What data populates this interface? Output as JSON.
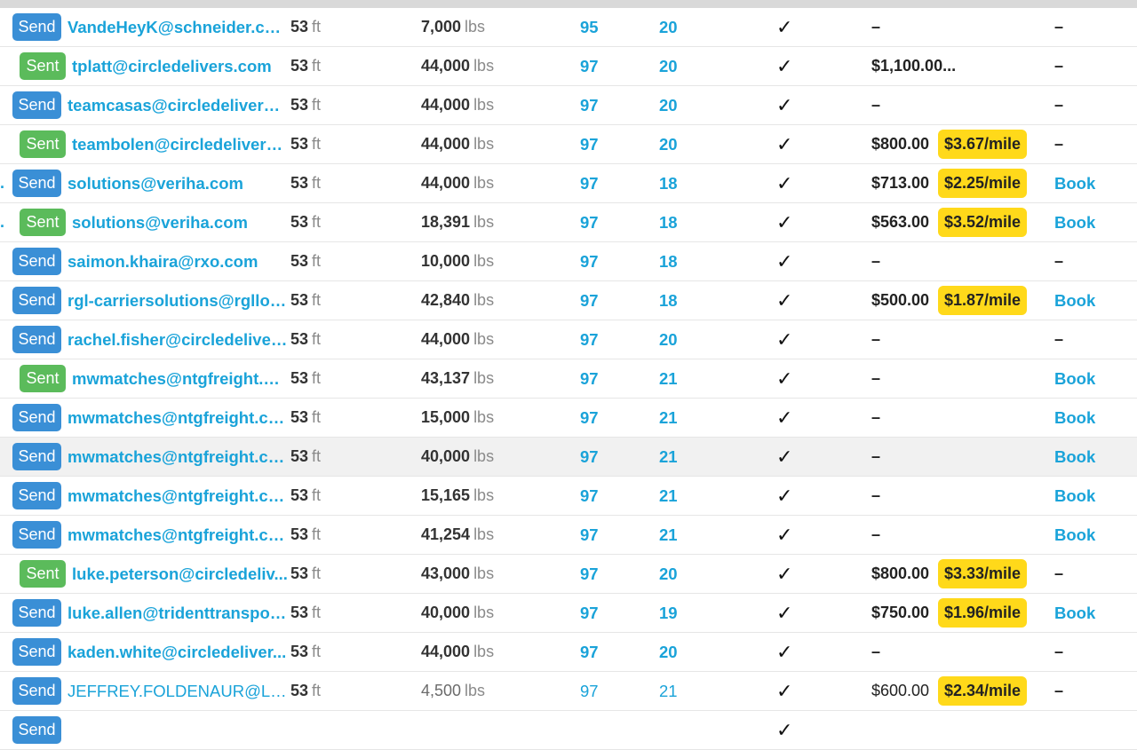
{
  "rows": [
    {
      "dot": "",
      "status": "Send",
      "email": "VandeHeyK@schneider.com",
      "length": "53",
      "length_unit": "ft",
      "weight": "7,000",
      "weight_unit": "lbs",
      "n1": "95",
      "n2": "20",
      "check": "✓",
      "rate": "–",
      "per_mile": "",
      "action": "–"
    },
    {
      "dot": "",
      "status": "Sent",
      "email": "tplatt@circledelivers.com",
      "length": "53",
      "length_unit": "ft",
      "weight": "44,000",
      "weight_unit": "lbs",
      "n1": "97",
      "n2": "20",
      "check": "✓",
      "rate": "$1,100.00...",
      "per_mile": "",
      "action": "–"
    },
    {
      "dot": "",
      "status": "Send",
      "email": "teamcasas@circledelivers.c...",
      "length": "53",
      "length_unit": "ft",
      "weight": "44,000",
      "weight_unit": "lbs",
      "n1": "97",
      "n2": "20",
      "check": "✓",
      "rate": "–",
      "per_mile": "",
      "action": "–"
    },
    {
      "dot": "",
      "status": "Sent",
      "email": "teambolen@circledelivers....",
      "length": "53",
      "length_unit": "ft",
      "weight": "44,000",
      "weight_unit": "lbs",
      "n1": "97",
      "n2": "20",
      "check": "✓",
      "rate": "$800.00",
      "per_mile": "$3.67/mile",
      "action": "–"
    },
    {
      "dot": ".",
      "status": "Send",
      "email": "solutions@veriha.com",
      "length": "53",
      "length_unit": "ft",
      "weight": "44,000",
      "weight_unit": "lbs",
      "n1": "97",
      "n2": "18",
      "check": "✓",
      "rate": "$713.00",
      "per_mile": "$2.25/mile",
      "action": "Book"
    },
    {
      "dot": ".",
      "status": "Sent",
      "email": "solutions@veriha.com",
      "length": "53",
      "length_unit": "ft",
      "weight": "18,391",
      "weight_unit": "lbs",
      "n1": "97",
      "n2": "18",
      "check": "✓",
      "rate": "$563.00",
      "per_mile": "$3.52/mile",
      "action": "Book"
    },
    {
      "dot": "",
      "status": "Send",
      "email": "saimon.khaira@rxo.com",
      "length": "53",
      "length_unit": "ft",
      "weight": "10,000",
      "weight_unit": "lbs",
      "n1": "97",
      "n2": "18",
      "check": "✓",
      "rate": "–",
      "per_mile": "",
      "action": "–"
    },
    {
      "dot": "",
      "status": "Send",
      "email": "rgl-carriersolutions@rgllog...",
      "length": "53",
      "length_unit": "ft",
      "weight": "42,840",
      "weight_unit": "lbs",
      "n1": "97",
      "n2": "18",
      "check": "✓",
      "rate": "$500.00",
      "per_mile": "$1.87/mile",
      "action": "Book"
    },
    {
      "dot": "",
      "status": "Send",
      "email": "rachel.fisher@circledeliver...",
      "length": "53",
      "length_unit": "ft",
      "weight": "44,000",
      "weight_unit": "lbs",
      "n1": "97",
      "n2": "20",
      "check": "✓",
      "rate": "–",
      "per_mile": "",
      "action": "–"
    },
    {
      "dot": "",
      "status": "Sent",
      "email": "mwmatches@ntgfreight.co...",
      "length": "53",
      "length_unit": "ft",
      "weight": "43,137",
      "weight_unit": "lbs",
      "n1": "97",
      "n2": "21",
      "check": "✓",
      "rate": "–",
      "per_mile": "",
      "action": "Book"
    },
    {
      "dot": "",
      "status": "Send",
      "email": "mwmatches@ntgfreight.com",
      "length": "53",
      "length_unit": "ft",
      "weight": "15,000",
      "weight_unit": "lbs",
      "n1": "97",
      "n2": "21",
      "check": "✓",
      "rate": "–",
      "per_mile": "",
      "action": "Book"
    },
    {
      "dot": "",
      "status": "Send",
      "email": "mwmatches@ntgfreight.com",
      "length": "53",
      "length_unit": "ft",
      "weight": "40,000",
      "weight_unit": "lbs",
      "n1": "97",
      "n2": "21",
      "check": "✓",
      "rate": "–",
      "per_mile": "",
      "action": "Book",
      "highlight": true
    },
    {
      "dot": "",
      "status": "Send",
      "email": "mwmatches@ntgfreight.com",
      "length": "53",
      "length_unit": "ft",
      "weight": "15,165",
      "weight_unit": "lbs",
      "n1": "97",
      "n2": "21",
      "check": "✓",
      "rate": "–",
      "per_mile": "",
      "action": "Book"
    },
    {
      "dot": "",
      "status": "Send",
      "email": "mwmatches@ntgfreight.com",
      "length": "53",
      "length_unit": "ft",
      "weight": "41,254",
      "weight_unit": "lbs",
      "n1": "97",
      "n2": "21",
      "check": "✓",
      "rate": "–",
      "per_mile": "",
      "action": "Book"
    },
    {
      "dot": "",
      "status": "Sent",
      "email": "luke.peterson@circledeliv...",
      "length": "53",
      "length_unit": "ft",
      "weight": "43,000",
      "weight_unit": "lbs",
      "n1": "97",
      "n2": "20",
      "check": "✓",
      "rate": "$800.00",
      "per_mile": "$3.33/mile",
      "action": "–"
    },
    {
      "dot": "",
      "status": "Send",
      "email": "luke.allen@tridenttranspor...",
      "length": "53",
      "length_unit": "ft",
      "weight": "40,000",
      "weight_unit": "lbs",
      "n1": "97",
      "n2": "19",
      "check": "✓",
      "rate": "$750.00",
      "per_mile": "$1.96/mile",
      "action": "Book"
    },
    {
      "dot": "",
      "status": "Send",
      "email": "kaden.white@circledeliver...",
      "length": "53",
      "length_unit": "ft",
      "weight": "44,000",
      "weight_unit": "lbs",
      "n1": "97",
      "n2": "20",
      "check": "✓",
      "rate": "–",
      "per_mile": "",
      "action": "–"
    },
    {
      "dot": "",
      "status": "Send",
      "email": "JEFFREY.FOLDENAUR@LA...",
      "length": "53",
      "length_unit": "ft",
      "weight": "4,500",
      "weight_unit": "lbs",
      "n1": "97",
      "n2": "21",
      "check": "✓",
      "rate": "$600.00",
      "per_mile": "$2.34/mile",
      "action": "–",
      "plain": true
    },
    {
      "dot": "",
      "status": "Send",
      "email": "",
      "length": "",
      "length_unit": "",
      "weight": "",
      "weight_unit": "",
      "n1": "",
      "n2": "",
      "check": "✓",
      "rate": "",
      "per_mile": "",
      "action": "",
      "partial": true
    }
  ],
  "colors": {
    "send": "#3a8fd6",
    "sent": "#5bbb5b",
    "link": "#1aa3d9",
    "pill": "#ffd91a"
  }
}
